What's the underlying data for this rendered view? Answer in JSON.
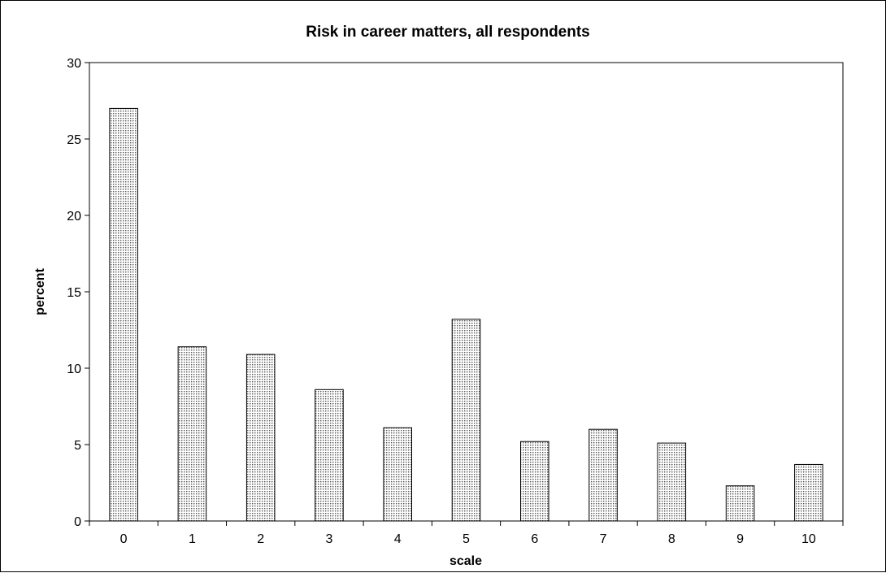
{
  "chart_data": {
    "type": "bar",
    "title": "Risk in career matters, all respondents",
    "xlabel": "scale",
    "ylabel": "percent",
    "categories": [
      "0",
      "1",
      "2",
      "3",
      "4",
      "5",
      "6",
      "7",
      "8",
      "9",
      "10"
    ],
    "values": [
      27.0,
      11.4,
      10.9,
      8.6,
      6.1,
      13.2,
      5.2,
      6.0,
      5.1,
      2.3,
      3.7
    ],
    "ylim": [
      0,
      30
    ],
    "yticks": [
      0,
      5,
      10,
      15,
      20,
      25,
      30
    ],
    "grid": false,
    "legend": "none",
    "bar_fill": "dotted-pattern",
    "colors": {
      "bar_dots": "#555555",
      "bar_background": "#ffffff",
      "axis": "#000000",
      "frame": "#000000"
    }
  }
}
